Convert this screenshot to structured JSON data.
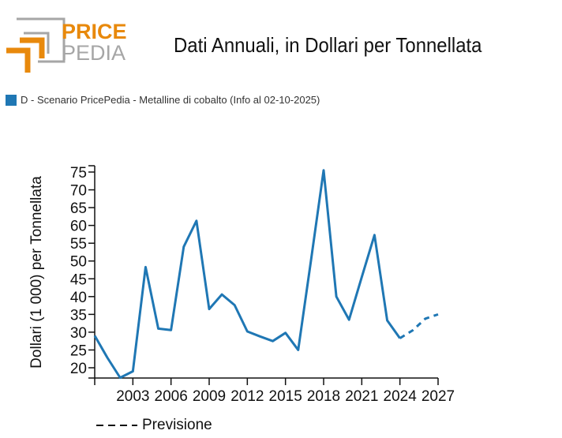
{
  "logo": {
    "word1": "PRICE",
    "word2": "PEDIA",
    "accent": "#e8890c",
    "gray": "#a6a6a6"
  },
  "header": {
    "title": "Dati Annuali, in Dollari per Tonnellata"
  },
  "legend": {
    "label": "D - Scenario PricePedia - Metalline di cobalto (Info al 02-10-2025)",
    "color": "#1f77b4"
  },
  "forecast_legend": {
    "label": "Previsione"
  },
  "chart_data": {
    "type": "line",
    "title": "Dati Annuali, in Dollari per Tonnellata",
    "xlabel": "",
    "ylabel": "Dollari (1 000) per Tonnellata",
    "xlim": [
      2000,
      2027
    ],
    "ylim": [
      17,
      76
    ],
    "xticks": [
      2000,
      2003,
      2006,
      2009,
      2012,
      2015,
      2018,
      2021,
      2024,
      2027
    ],
    "xtick_labels": [
      "",
      "2003",
      "2006",
      "2009",
      "2012",
      "2015",
      "2018",
      "2021",
      "2024",
      "2027"
    ],
    "yticks": [
      20,
      25,
      30,
      35,
      40,
      45,
      50,
      55,
      60,
      65,
      70,
      75
    ],
    "ytick_labels": [
      "20",
      "25",
      "30",
      "35",
      "40",
      "45",
      "50",
      "55",
      "60",
      "65",
      "70",
      "75"
    ],
    "series": [
      {
        "name": "D - Scenario PricePedia - Metalline di cobalto",
        "style": "solid",
        "color": "#1f77b4",
        "x": [
          2000,
          2001,
          2002,
          2003,
          2004,
          2005,
          2006,
          2007,
          2008,
          2009,
          2010,
          2011,
          2012,
          2013,
          2014,
          2015,
          2016,
          2017,
          2018,
          2019,
          2020,
          2021,
          2022,
          2023,
          2024
        ],
        "y": [
          29,
          22.8,
          17.2,
          19,
          48.3,
          31,
          30.6,
          54,
          61.3,
          36.5,
          40.6,
          37.6,
          30.2,
          28.8,
          27.5,
          29.8,
          25,
          50,
          75.5,
          40,
          33.5,
          45.5,
          57.3,
          33.3,
          28.3
        ]
      },
      {
        "name": "Previsione",
        "style": "dashed",
        "color": "#1f77b4",
        "x": [
          2024,
          2025,
          2026,
          2027
        ],
        "y": [
          28.3,
          30.5,
          33.8,
          35
        ]
      }
    ]
  }
}
